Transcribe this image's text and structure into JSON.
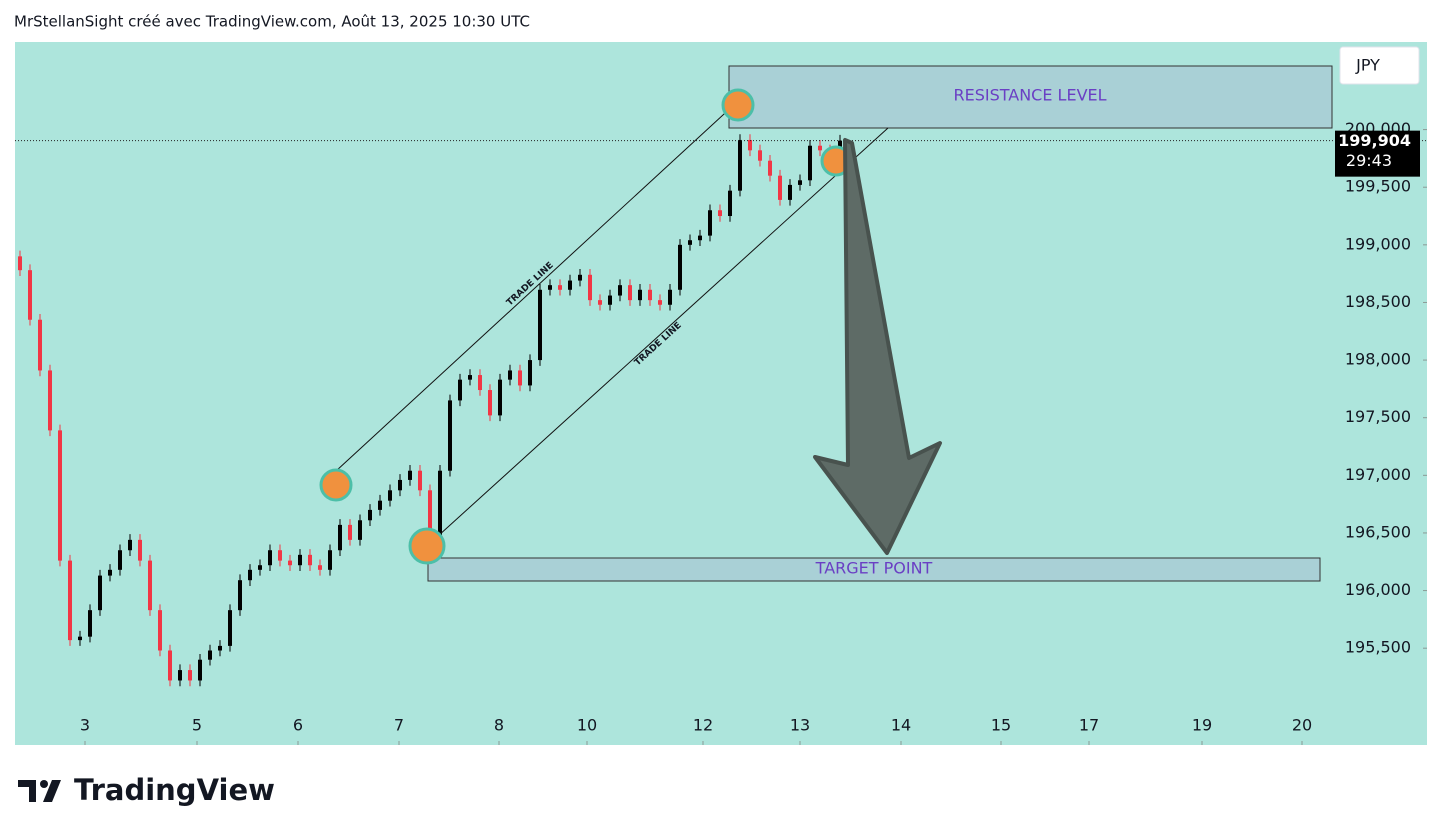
{
  "header": "MrStellanSight créé avec TradingView.com, Août 13, 2025 10:30 UTC",
  "logo": "TradingView",
  "chart_data": {
    "type": "candlestick",
    "currency": "JPY",
    "up_color": "#000000",
    "down_color": "#f23645",
    "background": "#ade5dc",
    "open": [
      198900,
      198780,
      198350,
      197910,
      197390,
      196260,
      195570,
      195600,
      195830,
      196130,
      196180,
      196350,
      196440,
      196260,
      195830,
      195480,
      195220,
      195310,
      195220,
      195400,
      195480,
      195520,
      195830,
      196090,
      196180,
      196220,
      196350,
      196260,
      196220,
      196310,
      196220,
      196180,
      196350,
      196570,
      196440,
      196610,
      196700,
      196780,
      196870,
      196960,
      197040,
      196870,
      196440,
      197040,
      197650,
      197830,
      197870,
      197740,
      197520,
      197830,
      197910,
      197780,
      198000,
      198610,
      198650,
      198610,
      198690,
      198740,
      198520,
      198480,
      198560,
      198650,
      198520,
      198610,
      198520,
      198480,
      198610,
      199000,
      199040,
      199080,
      199300,
      199250,
      199470,
      199910,
      199820,
      199730,
      199600,
      199390,
      199520,
      199560,
      199860,
      199820,
      199730
    ],
    "high": [
      198950,
      198830,
      198400,
      197960,
      197440,
      196310,
      195650,
      195880,
      196180,
      196230,
      196400,
      196490,
      196490,
      196310,
      195880,
      195530,
      195360,
      195360,
      195450,
      195530,
      195570,
      195880,
      196140,
      196230,
      196270,
      196400,
      196400,
      196310,
      196360,
      196360,
      196270,
      196400,
      196620,
      196620,
      196660,
      196750,
      196830,
      196920,
      197010,
      197090,
      197090,
      196920,
      197090,
      197700,
      197880,
      197920,
      197920,
      197790,
      197880,
      197960,
      197960,
      198050,
      198660,
      198700,
      198700,
      198740,
      198790,
      198790,
      198570,
      198610,
      198700,
      198700,
      198660,
      198660,
      198570,
      198660,
      199050,
      199090,
      199130,
      199350,
      199350,
      199520,
      199960,
      199960,
      199870,
      199780,
      199650,
      199570,
      199610,
      199910,
      199910,
      199870,
      199954
    ],
    "low": [
      198730,
      198300,
      197860,
      197340,
      196210,
      195520,
      195520,
      195550,
      195780,
      196080,
      196130,
      196300,
      196210,
      195780,
      195430,
      195170,
      195170,
      195170,
      195170,
      195350,
      195430,
      195470,
      195780,
      196040,
      196130,
      196170,
      196210,
      196170,
      196170,
      196170,
      196130,
      196130,
      196300,
      196390,
      196390,
      196560,
      196650,
      196730,
      196820,
      196910,
      196820,
      196390,
      196390,
      196990,
      197600,
      197780,
      197690,
      197470,
      197470,
      197780,
      197730,
      197730,
      197950,
      198560,
      198560,
      198560,
      198640,
      198470,
      198430,
      198430,
      198510,
      198470,
      198470,
      198470,
      198430,
      198430,
      198560,
      198950,
      198990,
      199030,
      199200,
      199200,
      199420,
      199770,
      199680,
      199550,
      199340,
      199340,
      199470,
      199510,
      199770,
      199680,
      199680
    ],
    "close": [
      198780,
      198350,
      197910,
      197390,
      196260,
      195570,
      195600,
      195830,
      196130,
      196180,
      196350,
      196440,
      196260,
      195830,
      195480,
      195220,
      195310,
      195220,
      195400,
      195480,
      195520,
      195830,
      196090,
      196180,
      196220,
      196350,
      196260,
      196220,
      196310,
      196220,
      196180,
      196350,
      196570,
      196440,
      196610,
      196700,
      196780,
      196870,
      196960,
      197040,
      196870,
      196440,
      197040,
      197650,
      197830,
      197870,
      197740,
      197520,
      197830,
      197910,
      197780,
      198000,
      198610,
      198650,
      198610,
      198690,
      198740,
      198520,
      198480,
      198560,
      198650,
      198520,
      198610,
      198520,
      198480,
      198610,
      199000,
      199040,
      199080,
      199300,
      199250,
      199470,
      199910,
      199820,
      199730,
      199600,
      199390,
      199520,
      199560,
      199860,
      199820,
      199730,
      199904
    ],
    "last_price_label": "199,904",
    "countdown": "29:43",
    "ylim": [
      194660,
      200760
    ],
    "yticks": [
      {
        "value": 195500,
        "label": "195,500"
      },
      {
        "value": 196000,
        "label": "196,000"
      },
      {
        "value": 196500,
        "label": "196,500"
      },
      {
        "value": 197000,
        "label": "197,000"
      },
      {
        "value": 197500,
        "label": "197,500"
      },
      {
        "value": 198000,
        "label": "198,000"
      },
      {
        "value": 198500,
        "label": "198,500"
      },
      {
        "value": 199000,
        "label": "199,000"
      },
      {
        "value": 199500,
        "label": "199,500"
      },
      {
        "value": 200000,
        "label": "200,000"
      }
    ],
    "xlim": [
      -0.5,
      140.7
    ],
    "xticks": [
      {
        "value": 6.5,
        "label": "3"
      },
      {
        "value": 17.7,
        "label": "5"
      },
      {
        "value": 27.8,
        "label": "6"
      },
      {
        "value": 37.9,
        "label": "7"
      },
      {
        "value": 47.9,
        "label": "8"
      },
      {
        "value": 56.7,
        "label": "10"
      },
      {
        "value": 68.3,
        "label": "12"
      },
      {
        "value": 78,
        "label": "13"
      },
      {
        "value": 88.1,
        "label": "14"
      },
      {
        "value": 98.1,
        "label": "15"
      },
      {
        "value": 106.9,
        "label": "17"
      },
      {
        "value": 118.2,
        "label": "19"
      },
      {
        "value": 128.2,
        "label": "20"
      }
    ],
    "annotations": [
      "RESISTANCE LEVEL",
      "TARGET POINT",
      "TRADE LINE",
      "TRADE LINE"
    ]
  }
}
